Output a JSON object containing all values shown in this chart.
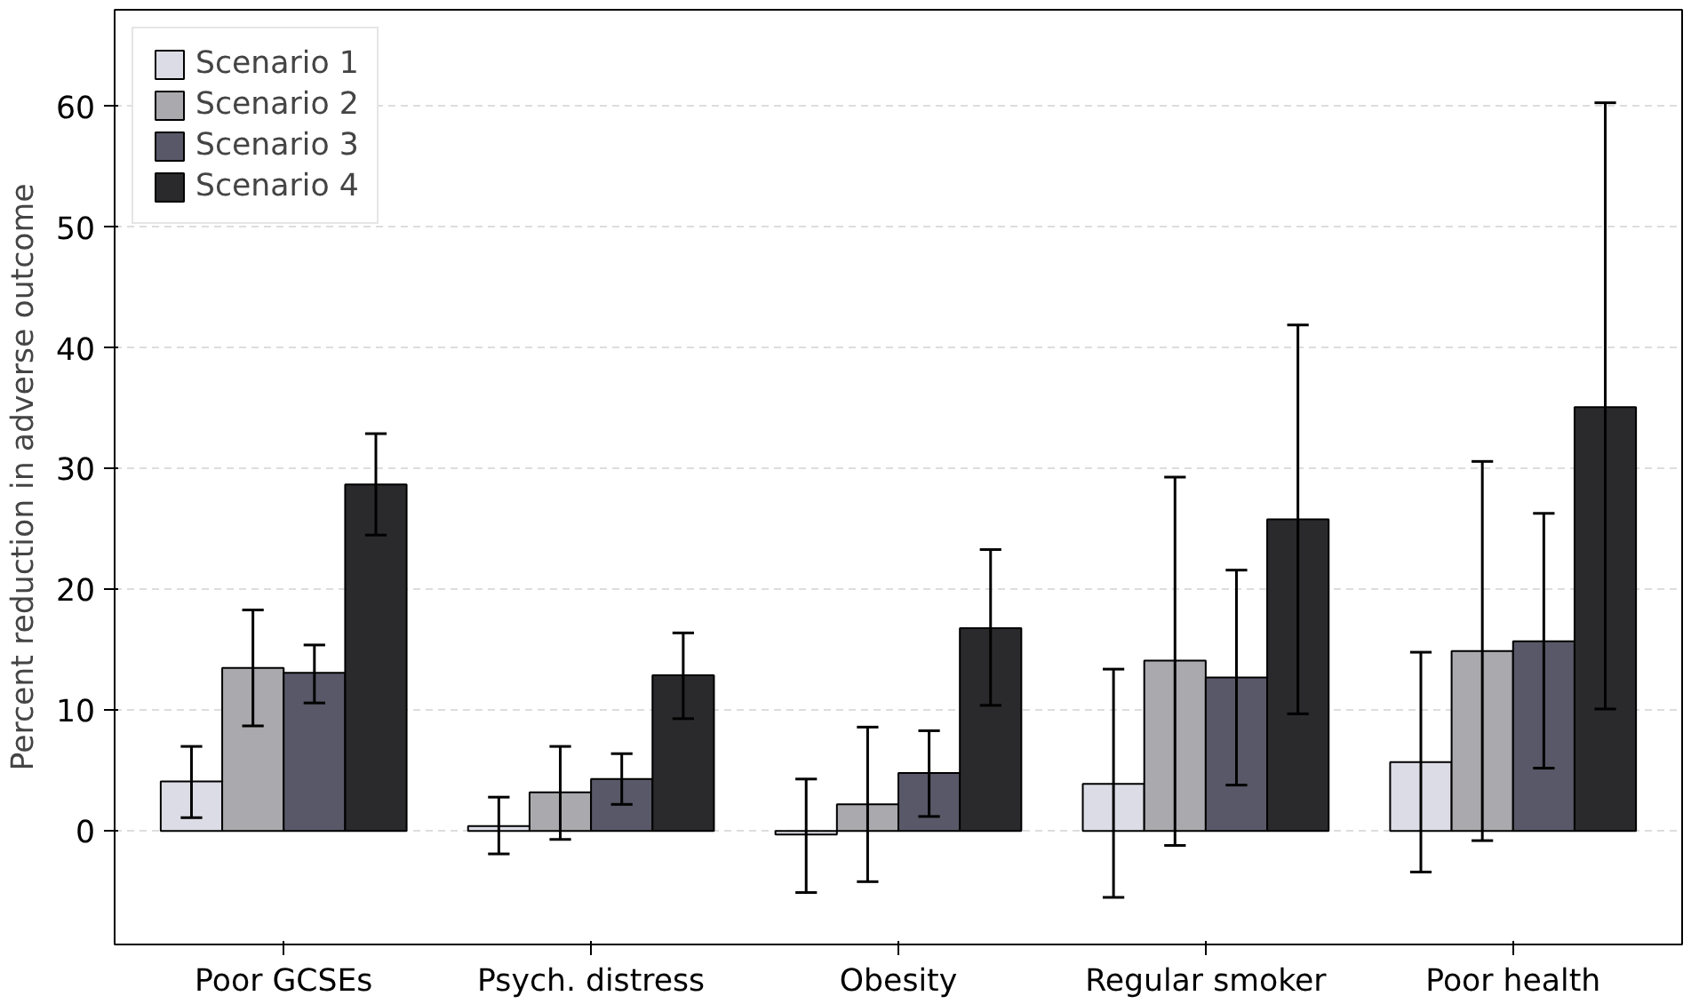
{
  "chart_data": {
    "type": "bar",
    "ylabel": "Percent reduction in adverse outcome",
    "categories": [
      "Poor GCSEs",
      "Psych. distress",
      "Obesity",
      "Regular smoker",
      "Poor health"
    ],
    "series": [
      {
        "name": "Scenario 1",
        "color": "#dcdce6",
        "values": [
          4.1,
          0.4,
          -0.3,
          3.9,
          5.7
        ],
        "errors": [
          [
            1.1,
            7.0
          ],
          [
            -1.9,
            2.8
          ],
          [
            -5.1,
            4.3
          ],
          [
            -5.5,
            13.4
          ],
          [
            -3.4,
            14.8
          ]
        ]
      },
      {
        "name": "Scenario 2",
        "color": "#a9a9ae",
        "values": [
          13.5,
          3.2,
          2.2,
          14.1,
          14.9
        ],
        "errors": [
          [
            8.7,
            18.3
          ],
          [
            -0.7,
            7.0
          ],
          [
            -4.2,
            8.6
          ],
          [
            -1.2,
            29.3
          ],
          [
            -0.8,
            30.6
          ]
        ]
      },
      {
        "name": "Scenario 3",
        "color": "#585868",
        "values": [
          13.1,
          4.3,
          4.8,
          12.7,
          15.7
        ],
        "errors": [
          [
            10.6,
            15.4
          ],
          [
            2.2,
            6.4
          ],
          [
            1.2,
            8.3
          ],
          [
            3.8,
            21.6
          ],
          [
            5.2,
            26.3
          ]
        ]
      },
      {
        "name": "Scenario 4",
        "color": "#2a2a2c",
        "values": [
          28.7,
          12.9,
          16.8,
          25.8,
          35.1
        ],
        "errors": [
          [
            24.5,
            32.9
          ],
          [
            9.3,
            16.4
          ],
          [
            10.4,
            23.3
          ],
          [
            9.7,
            41.9
          ],
          [
            10.1,
            60.3
          ]
        ]
      }
    ],
    "ylim": [
      -9.4,
      68
    ],
    "yticks": [
      0,
      10,
      20,
      30,
      40,
      50,
      60
    ],
    "grid": "y",
    "legend": "top left"
  }
}
